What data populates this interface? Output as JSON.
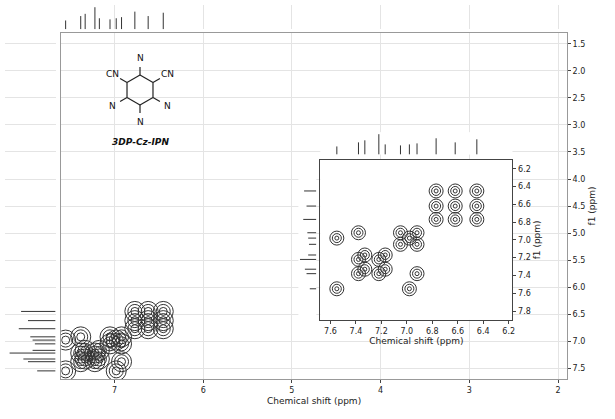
{
  "chart_data": {
    "type": "contour",
    "x_label": "Chemical shift (ppm)",
    "y_label": "f1 (ppm)",
    "xlim": [
      7.6,
      1.9
    ],
    "ylim": [
      7.7,
      1.3
    ],
    "xticks": [
      7,
      6,
      5,
      4,
      3,
      2
    ],
    "yticks": [
      1.5,
      {
        "value": 2,
        "label": "2.0"
      },
      2.5,
      {
        "value": 3,
        "label": "3.0"
      },
      3.5,
      {
        "value": 4,
        "label": "4.0"
      },
      4.5,
      {
        "value": 5,
        "label": "5.0"
      },
      5.5,
      {
        "value": 6,
        "label": "6.0"
      },
      6.5,
      {
        "value": 7,
        "label": "7.0"
      },
      7.5
    ],
    "grid": true,
    "color": "#333333",
    "peaks": {
      "x": [
        7.55,
        7.38,
        7.33,
        7.22,
        7.17,
        7.05,
        6.98,
        6.92,
        6.77,
        6.62,
        6.45,
        7.55,
        6.98,
        7.38,
        6.92,
        7.38,
        7.22,
        7.33,
        7.17,
        7.05,
        6.92,
        6.77,
        6.62,
        6.77,
        6.45,
        6.62,
        6.45
      ],
      "y": [
        7.55,
        7.38,
        7.33,
        7.22,
        7.17,
        7.05,
        6.98,
        6.92,
        6.77,
        6.62,
        6.45,
        6.98,
        7.55,
        6.92,
        7.38,
        7.22,
        7.38,
        7.17,
        7.33,
        6.92,
        7.05,
        6.62,
        6.77,
        6.45,
        6.77,
        6.45,
        6.62
      ]
    },
    "projection": {
      "shifts": [
        7.55,
        7.38,
        7.33,
        7.22,
        7.17,
        7.05,
        6.98,
        6.92,
        6.77,
        6.62,
        6.45
      ],
      "intensities": [
        0.4,
        0.6,
        0.7,
        1.0,
        0.5,
        0.45,
        0.5,
        0.55,
        0.8,
        0.6,
        0.75
      ],
      "intensity_lim": [
        0,
        1.1
      ]
    },
    "inset": {
      "x_label": "Chemical shift (ppm)",
      "y_label": "f1 (ppm)",
      "xlim": [
        7.68,
        6.17
      ],
      "ylim": [
        7.9,
        6.1
      ],
      "xticks": [
        7.6,
        7.4,
        7.2,
        {
          "value": 7,
          "label": "7.0"
        },
        6.8,
        6.6,
        6.4,
        6.2
      ],
      "yticks": [
        6.2,
        6.4,
        6.6,
        6.8,
        {
          "value": 7,
          "label": "7.0"
        },
        7.2,
        7.4,
        7.6,
        7.8
      ]
    },
    "structure": {
      "name": "3DP-Cz-IPN",
      "labels": {
        "top": "N",
        "upper_left": "CN",
        "upper_right": "CN",
        "lower_left": "N",
        "lower_right": "N",
        "bottom": "N"
      }
    }
  }
}
